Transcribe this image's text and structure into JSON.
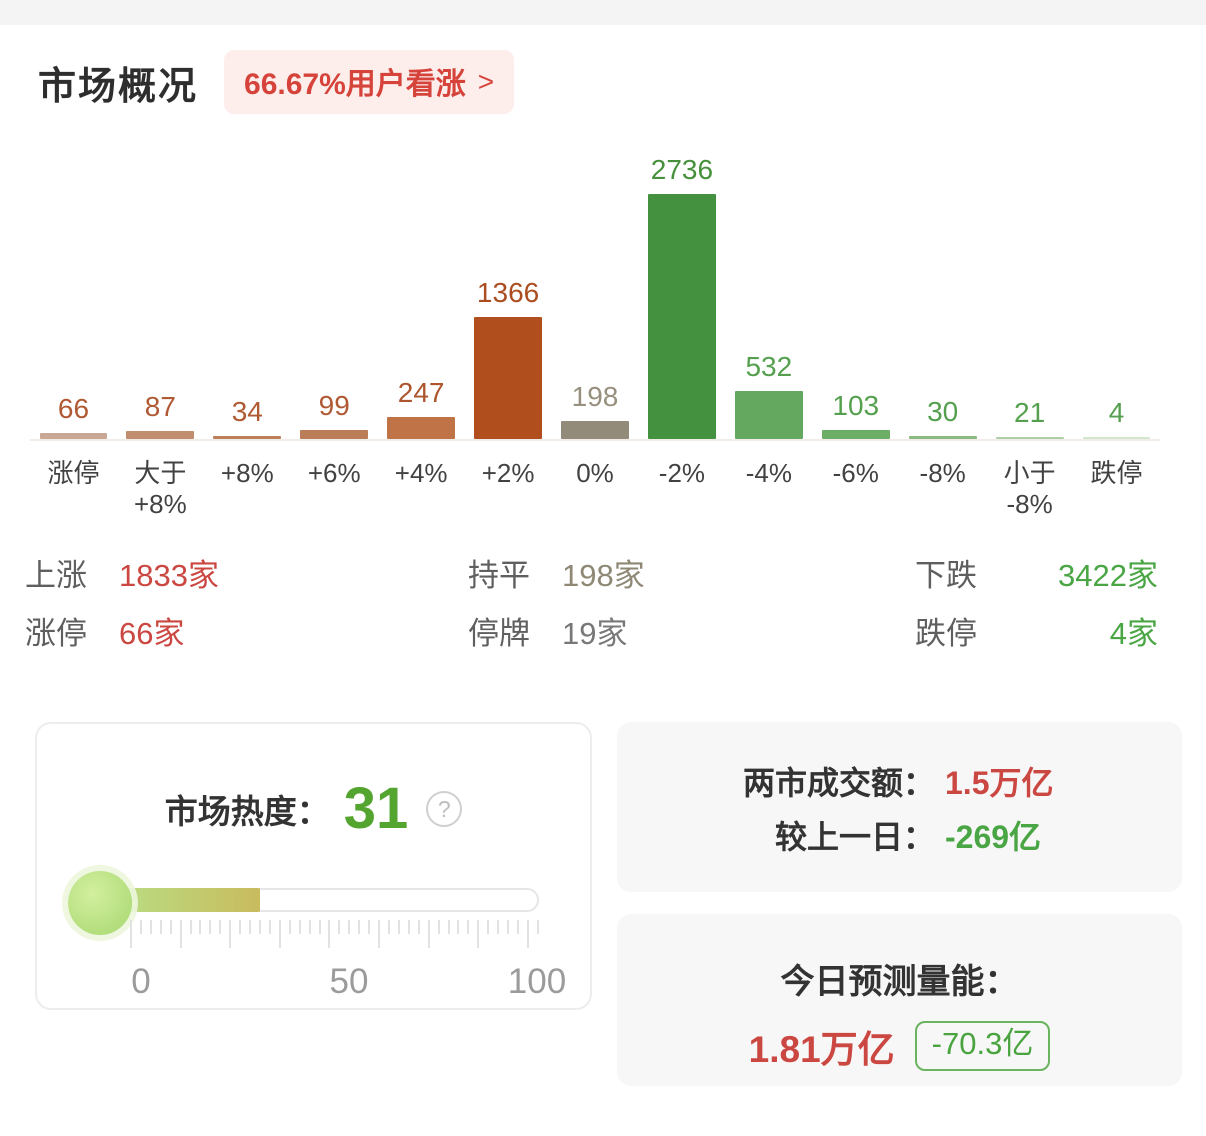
{
  "colors": {
    "up_red": "#cb4742",
    "down_green": "#4aa644",
    "flat_olive": "#8e8875",
    "neutral_gray": "#787878",
    "badge_bg": "#fdeeec",
    "badge_text": "#d5433a",
    "card_bg": "#f7f7f7",
    "heat_green": "#54a52f"
  },
  "header": {
    "title": "市场概况",
    "badge_label": "66.67%用户看涨",
    "badge_arrow": ">"
  },
  "chart_data": {
    "type": "bar",
    "categories": [
      "涨停",
      "大于\n+8%",
      "+8%",
      "+6%",
      "+4%",
      "+2%",
      "0%",
      "-2%",
      "-4%",
      "-6%",
      "-8%",
      "小于\n-8%",
      "跌停"
    ],
    "values": [
      66,
      87,
      34,
      99,
      247,
      1366,
      198,
      2736,
      532,
      103,
      30,
      21,
      4
    ],
    "bar_colors": [
      "#c8a795",
      "#c08e6e",
      "#bb8059",
      "#ba7d57",
      "#c07347",
      "#b04e1e",
      "#928b7a",
      "#44923f",
      "#64a85f",
      "#6dae66",
      "#8abc82",
      "#abd0a3",
      "#d2e5cd"
    ],
    "value_label_colors": [
      "#b05a34",
      "#b05a34",
      "#b05a34",
      "#b05a34",
      "#ad552c",
      "#ab4d20",
      "#97907f",
      "#47913d",
      "#55a04e",
      "#55a04e",
      "#55a04e",
      "#55a04e",
      "#55a04e"
    ],
    "ylim": [
      0,
      2736
    ],
    "grid": false,
    "legend": false,
    "data_labels": true
  },
  "summary": {
    "groups": [
      {
        "rows": [
          {
            "label": "上涨",
            "value": "1833家"
          },
          {
            "label": "涨停",
            "value": "66家"
          }
        ]
      },
      {
        "rows": [
          {
            "label": "持平",
            "value": "198家"
          },
          {
            "label": "停牌",
            "value": "19家"
          }
        ]
      },
      {
        "rows": [
          {
            "label": "下跌",
            "value": "3422家"
          },
          {
            "label": "跌停",
            "value": "4家"
          }
        ]
      }
    ]
  },
  "heat": {
    "label": "市场热度：",
    "value": "31",
    "percent": 31,
    "help": "?",
    "scale_labels": [
      "0",
      "50",
      "100"
    ]
  },
  "turnover": {
    "rows": [
      {
        "label": "两市成交额：",
        "value": "1.5万亿"
      },
      {
        "label": "较上一日：",
        "value": "-269亿"
      }
    ]
  },
  "forecast": {
    "title": "今日预测量能：",
    "value": "1.81万亿",
    "badge": "-70.3亿"
  }
}
